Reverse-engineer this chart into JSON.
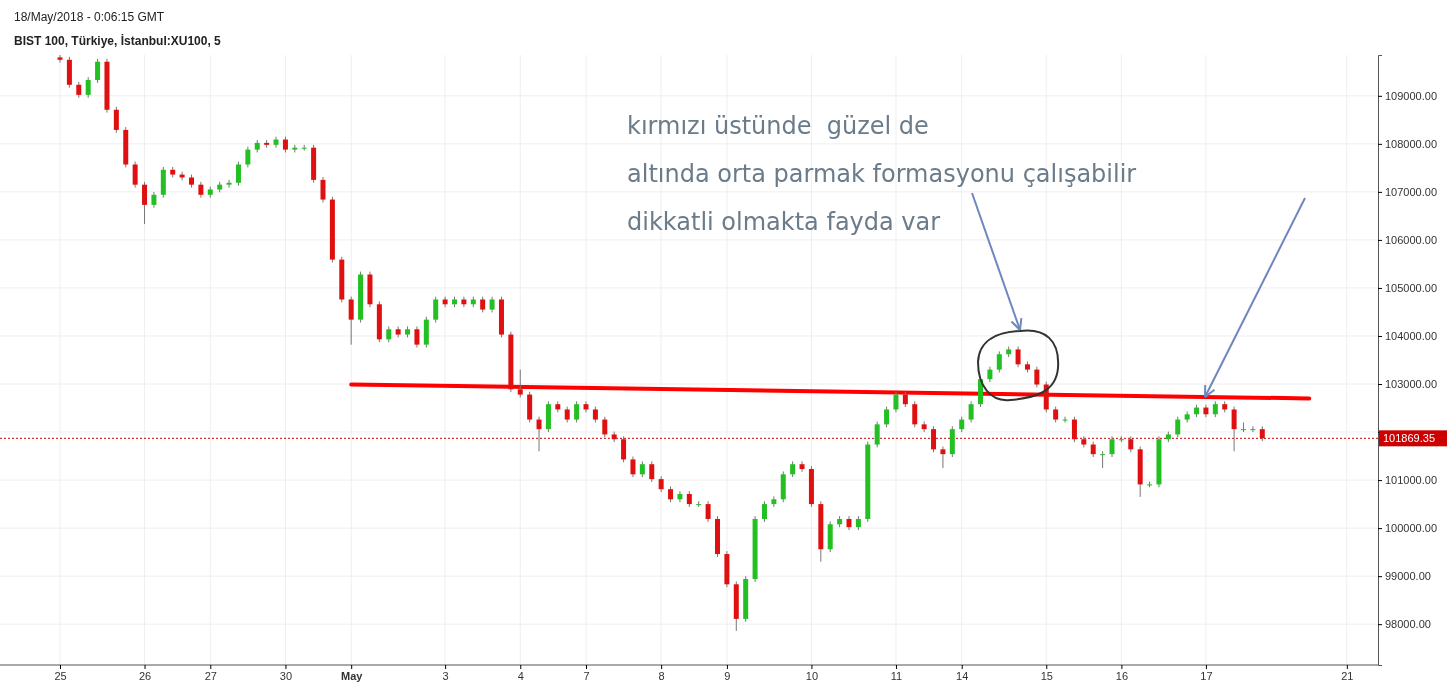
{
  "chart_data": {
    "type": "candlestick",
    "title": "BIST 100, Türkiye, İstanbul:XU100, 5",
    "subtitle": "18/May/2018 - 0:06:15 GMT",
    "annotations": [
      "kırmızı üstünde  güzel de",
      "altında orta parmak formasyonu çalışabilir",
      "dikkatli olmakta fayda var"
    ],
    "categories": [
      "25",
      null,
      null,
      null,
      null,
      null,
      null,
      null,
      null,
      "26",
      null,
      null,
      null,
      null,
      null,
      null,
      "27",
      null,
      null,
      null,
      null,
      null,
      null,
      null,
      "30",
      null,
      null,
      null,
      null,
      null,
      null,
      "May",
      null,
      null,
      null,
      null,
      null,
      null,
      null,
      null,
      null,
      "3",
      null,
      null,
      null,
      null,
      null,
      null,
      null,
      "4",
      null,
      null,
      null,
      null,
      null,
      null,
      "7",
      null,
      null,
      null,
      null,
      null,
      null,
      null,
      "8",
      null,
      null,
      null,
      null,
      null,
      null,
      "9",
      null,
      null,
      null,
      null,
      null,
      null,
      null,
      null,
      "10",
      null,
      null,
      null,
      null,
      null,
      null,
      null,
      null,
      "11",
      null,
      null,
      null,
      null,
      null,
      null,
      "14",
      null,
      null,
      null,
      null,
      null,
      null,
      null,
      null,
      "15",
      null,
      null,
      null,
      null,
      null,
      null,
      null,
      "16",
      null,
      null,
      null,
      null,
      null,
      null,
      null,
      null,
      "17",
      null,
      null,
      null,
      null,
      null,
      null,
      null,
      null,
      null,
      null,
      null,
      null,
      null,
      null,
      "21",
      null,
      null,
      null
    ],
    "ohlc": [
      [
        109800,
        109850,
        109690,
        109750
      ],
      [
        109750,
        109810,
        109170,
        109230
      ],
      [
        109230,
        109290,
        108960,
        109020
      ],
      [
        109020,
        109390,
        108960,
        109330
      ],
      [
        109330,
        109770,
        109270,
        109710
      ],
      [
        109710,
        109770,
        108650,
        108710
      ],
      [
        108710,
        108770,
        108230,
        108290
      ],
      [
        108290,
        108350,
        107510,
        107570
      ],
      [
        107570,
        107630,
        107090,
        107150
      ],
      [
        107150,
        107210,
        106330,
        106730
      ],
      [
        106730,
        107000,
        106670,
        106940
      ],
      [
        106940,
        107520,
        106880,
        107460
      ],
      [
        107460,
        107520,
        107300,
        107360
      ],
      [
        107360,
        107420,
        107240,
        107300
      ],
      [
        107300,
        107360,
        107090,
        107150
      ],
      [
        107150,
        107210,
        106880,
        106940
      ],
      [
        106940,
        107110,
        106880,
        107050
      ],
      [
        107050,
        107210,
        106990,
        107150
      ],
      [
        107150,
        107250,
        107090,
        107190
      ],
      [
        107190,
        107630,
        107130,
        107570
      ],
      [
        107570,
        107940,
        107510,
        107880
      ],
      [
        107880,
        108080,
        107820,
        108020
      ],
      [
        108020,
        108080,
        107920,
        107980
      ],
      [
        107980,
        108150,
        107920,
        108090
      ],
      [
        108090,
        108150,
        107820,
        107880
      ],
      [
        107880,
        107980,
        107820,
        107920
      ],
      [
        107920,
        107980,
        107860,
        107920
      ],
      [
        107920,
        107980,
        107190,
        107250
      ],
      [
        107250,
        107310,
        106780,
        106840
      ],
      [
        106840,
        106900,
        105530,
        105590
      ],
      [
        105590,
        105650,
        104700,
        104760
      ],
      [
        104760,
        104820,
        103820,
        104340
      ],
      [
        104340,
        105340,
        104280,
        105280
      ],
      [
        105280,
        105340,
        104600,
        104660
      ],
      [
        104660,
        104720,
        103870,
        103930
      ],
      [
        103930,
        104200,
        103870,
        104140
      ],
      [
        104140,
        104200,
        103970,
        104030
      ],
      [
        104030,
        104200,
        103970,
        104140
      ],
      [
        104140,
        104200,
        103760,
        103820
      ],
      [
        103820,
        104400,
        103760,
        104340
      ],
      [
        104340,
        104820,
        104280,
        104760
      ],
      [
        104760,
        104820,
        104600,
        104660
      ],
      [
        104660,
        104820,
        104600,
        104760
      ],
      [
        104760,
        104820,
        104600,
        104660
      ],
      [
        104660,
        104820,
        104600,
        104760
      ],
      [
        104760,
        104820,
        104490,
        104550
      ],
      [
        104550,
        104820,
        104490,
        104760
      ],
      [
        104760,
        104820,
        103970,
        104030
      ],
      [
        104030,
        104090,
        102830,
        102890
      ],
      [
        102890,
        103300,
        102720,
        102780
      ],
      [
        102780,
        102840,
        102200,
        102260
      ],
      [
        102260,
        102320,
        101600,
        102060
      ],
      [
        102060,
        102640,
        102000,
        102580
      ],
      [
        102580,
        102640,
        102410,
        102470
      ],
      [
        102470,
        102530,
        102200,
        102260
      ],
      [
        102260,
        102640,
        102200,
        102580
      ],
      [
        102580,
        102640,
        102410,
        102470
      ],
      [
        102470,
        102530,
        102200,
        102260
      ],
      [
        102260,
        102320,
        101890,
        101950
      ],
      [
        101950,
        102010,
        101790,
        101850
      ],
      [
        101850,
        101910,
        101370,
        101430
      ],
      [
        101430,
        101490,
        101060,
        101120
      ],
      [
        101120,
        101390,
        101060,
        101330
      ],
      [
        101330,
        101390,
        100960,
        101020
      ],
      [
        101020,
        101080,
        100750,
        100810
      ],
      [
        100810,
        100870,
        100540,
        100600
      ],
      [
        100600,
        100770,
        100540,
        100710
      ],
      [
        100710,
        100770,
        100440,
        100500
      ],
      [
        100500,
        100560,
        100440,
        100500
      ],
      [
        100500,
        100560,
        100130,
        100190
      ],
      [
        100190,
        100250,
        99400,
        99460
      ],
      [
        99460,
        99520,
        98770,
        98830
      ],
      [
        98830,
        98890,
        97860,
        98110
      ],
      [
        98110,
        99000,
        98050,
        98940
      ],
      [
        98940,
        100250,
        98880,
        100190
      ],
      [
        100190,
        100560,
        100130,
        100500
      ],
      [
        100500,
        100660,
        100440,
        100600
      ],
      [
        100600,
        101180,
        100540,
        101120
      ],
      [
        101120,
        101390,
        101060,
        101330
      ],
      [
        101330,
        101390,
        101170,
        101230
      ],
      [
        101230,
        101290,
        100440,
        100500
      ],
      [
        100500,
        100560,
        99300,
        99560
      ],
      [
        99560,
        100140,
        99500,
        100080
      ],
      [
        100080,
        100250,
        100020,
        100190
      ],
      [
        100190,
        100250,
        99960,
        100020
      ],
      [
        100020,
        100250,
        99960,
        100190
      ],
      [
        100190,
        101800,
        100130,
        101740
      ],
      [
        101740,
        102220,
        101680,
        102160
      ],
      [
        102160,
        102530,
        102100,
        102470
      ],
      [
        102470,
        102840,
        102410,
        102780
      ],
      [
        102780,
        102840,
        102520,
        102580
      ],
      [
        102580,
        102640,
        102100,
        102160
      ],
      [
        102160,
        102220,
        102000,
        102060
      ],
      [
        102060,
        102120,
        101580,
        101640
      ],
      [
        101640,
        101700,
        101250,
        101540
      ],
      [
        101540,
        102120,
        101480,
        102060
      ],
      [
        102060,
        102320,
        102000,
        102260
      ],
      [
        102260,
        102640,
        102200,
        102580
      ],
      [
        102580,
        103160,
        102520,
        103100
      ],
      [
        103100,
        103360,
        103040,
        103300
      ],
      [
        103300,
        103680,
        103240,
        103620
      ],
      [
        103620,
        103780,
        103560,
        103720
      ],
      [
        103720,
        103780,
        103350,
        103410
      ],
      [
        103410,
        103470,
        103240,
        103300
      ],
      [
        103300,
        103360,
        102930,
        102990
      ],
      [
        102990,
        103050,
        102410,
        102470
      ],
      [
        102470,
        102530,
        102200,
        102260
      ],
      [
        102260,
        102320,
        102200,
        102260
      ],
      [
        102260,
        102320,
        101790,
        101850
      ],
      [
        101850,
        101910,
        101680,
        101740
      ],
      [
        101740,
        101800,
        101480,
        101540
      ],
      [
        101540,
        101600,
        101250,
        101540
      ],
      [
        101540,
        101910,
        101480,
        101850
      ],
      [
        101850,
        101910,
        101790,
        101850
      ],
      [
        101850,
        101910,
        101580,
        101640
      ],
      [
        101640,
        101700,
        100650,
        100910
      ],
      [
        100910,
        100970,
        100850,
        100910
      ],
      [
        100910,
        101910,
        100850,
        101850
      ],
      [
        101850,
        102010,
        101790,
        101950
      ],
      [
        101950,
        102320,
        101890,
        102260
      ],
      [
        102260,
        102430,
        102200,
        102370
      ],
      [
        102370,
        102570,
        102310,
        102510
      ],
      [
        102510,
        102570,
        102310,
        102370
      ],
      [
        102370,
        102640,
        102310,
        102580
      ],
      [
        102580,
        102640,
        102410,
        102470
      ],
      [
        102470,
        102530,
        101600,
        102060
      ],
      [
        102060,
        102200,
        102000,
        102060
      ],
      [
        102060,
        102120,
        102000,
        102060
      ],
      [
        102060,
        102120,
        101810,
        101870
      ],
      null,
      null,
      null,
      null,
      null,
      null,
      null,
      null,
      null,
      null,
      null,
      null
    ],
    "series": [
      {
        "type": "line",
        "color": "#ff0000",
        "values": [
          null,
          null,
          null,
          null,
          null,
          null,
          null,
          null,
          null,
          null,
          null,
          null,
          null,
          null,
          null,
          null,
          null,
          null,
          null,
          null,
          null,
          null,
          null,
          null,
          null,
          null,
          null,
          null,
          null,
          null,
          null,
          102990,
          null,
          null,
          null,
          null,
          null,
          null,
          null,
          null,
          null,
          null,
          null,
          null,
          null,
          null,
          null,
          null,
          null,
          null,
          null,
          null,
          null,
          null,
          null,
          null,
          null,
          null,
          null,
          null,
          null,
          null,
          null,
          null,
          null,
          null,
          null,
          null,
          null,
          null,
          null,
          null,
          null,
          null,
          null,
          null,
          null,
          null,
          null,
          null,
          null,
          null,
          null,
          null,
          null,
          null,
          null,
          null,
          null,
          null,
          null,
          null,
          null,
          null,
          null,
          null,
          null,
          null,
          null,
          null,
          null,
          null,
          null,
          null,
          null,
          null,
          null,
          null,
          null,
          null,
          null,
          null,
          null,
          null,
          null,
          null,
          null,
          null,
          null,
          null,
          null,
          null,
          null,
          null,
          null,
          null,
          null,
          null,
          null,
          null,
          null,
          null,
          null,
          102700,
          null,
          null,
          null,
          null,
          null,
          null,
          null
        ]
      }
    ],
    "ref_lines": [
      {
        "axis": "y",
        "value": 101869.35,
        "label": "101869.35",
        "color": "#cc0000",
        "line_style": "dotted"
      }
    ],
    "ylim": [
      97150,
      109850
    ],
    "yticks": [
      {
        "value": 98000,
        "label": "98000.00"
      },
      {
        "value": 99000,
        "label": "99000.00"
      },
      {
        "value": 100000,
        "label": "100000.00"
      },
      {
        "value": 101000,
        "label": "101000.00"
      },
      {
        "value": 102000,
        "label": null
      },
      {
        "value": 103000,
        "label": "103000.00"
      },
      {
        "value": 104000,
        "label": "104000.00"
      },
      {
        "value": 105000,
        "label": "105000.00"
      },
      {
        "value": 106000,
        "label": "106000.00"
      },
      {
        "value": 107000,
        "label": "107000.00"
      },
      {
        "value": 108000,
        "label": "108000.00"
      },
      {
        "value": 109000,
        "label": "109000.00"
      }
    ],
    "grid": true
  }
}
